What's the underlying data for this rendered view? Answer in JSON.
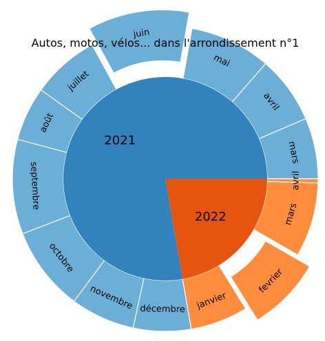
{
  "chart_data": {
    "type": "sunburst",
    "title": "Autos, motos, vélos... dans l'arrondissement n°1",
    "start_angle_deg": 0,
    "direction": "counterclockwise",
    "colors": {
      "year_2021_inner": "#3182bd",
      "year_2021_outer": "#6baed6",
      "year_2022_inner": "#e6550d",
      "year_2022_outer": "#fd8d3c",
      "edge": "#ffffff"
    },
    "years": [
      {
        "label": "2021",
        "months": [
          {
            "label": "mars",
            "value": 9.0,
            "exploded": false
          },
          {
            "label": "avril",
            "value": 10.0,
            "exploded": false
          },
          {
            "label": "mai",
            "value": 12.0,
            "exploded": false
          },
          {
            "label": "juin",
            "value": 15.0,
            "exploded": true
          },
          {
            "label": "juillet",
            "value": 10.0,
            "exploded": false
          },
          {
            "label": "août",
            "value": 8.0,
            "exploded": false
          },
          {
            "label": "septembre",
            "value": 14.0,
            "exploded": false
          },
          {
            "label": "octobre",
            "value": 12.5,
            "exploded": false
          },
          {
            "label": "novembre",
            "value": 9.5,
            "exploded": false
          },
          {
            "label": "décembre",
            "value": 8.5,
            "exploded": false
          }
        ]
      },
      {
        "label": "2022",
        "months": [
          {
            "label": "janvier",
            "value": 8.5,
            "exploded": false
          },
          {
            "label": "fevrier",
            "value": 11.0,
            "exploded": true
          },
          {
            "label": "mars",
            "value": 11.0,
            "exploded": false
          },
          {
            "label": "avril",
            "value": 0.6,
            "exploded": false
          }
        ]
      }
    ]
  }
}
